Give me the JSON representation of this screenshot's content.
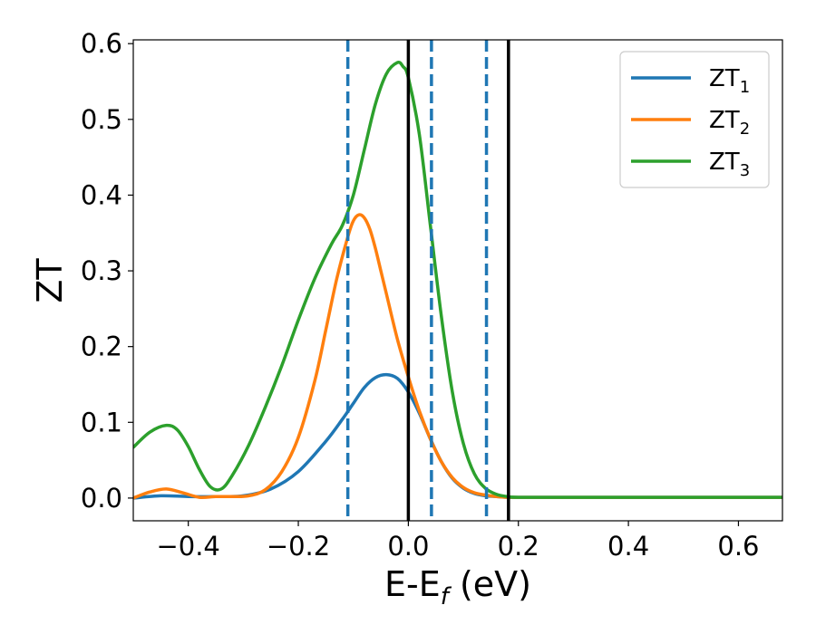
{
  "chart_data": {
    "type": "line",
    "title": "",
    "xlabel": "E-E",
    "xlabel_sub": "f",
    "xlabel_unit": " (eV)",
    "ylabel": "ZT",
    "xlim": [
      -0.5,
      0.68
    ],
    "ylim": [
      -0.03,
      0.605
    ],
    "xticks": [
      -0.4,
      -0.2,
      0.0,
      0.2,
      0.4,
      0.6
    ],
    "xtick_labels": [
      "−0.4",
      "−0.2",
      "0.0",
      "0.2",
      "0.4",
      "0.6"
    ],
    "yticks": [
      0.0,
      0.1,
      0.2,
      0.3,
      0.4,
      0.5,
      0.6
    ],
    "ytick_labels": [
      "0.0",
      "0.1",
      "0.2",
      "0.3",
      "0.4",
      "0.5",
      "0.6"
    ],
    "grid": false,
    "legend_position": "top-right",
    "series": [
      {
        "name": "ZT",
        "name_sub": "1",
        "color": "#1f77b4",
        "x": [
          -0.5,
          -0.45,
          -0.4,
          -0.35,
          -0.3,
          -0.25,
          -0.2,
          -0.15,
          -0.12,
          -0.1,
          -0.08,
          -0.06,
          -0.04,
          -0.02,
          0.0,
          0.02,
          0.04,
          0.06,
          0.08,
          0.1,
          0.12,
          0.14,
          0.16,
          0.18,
          0.2,
          0.3,
          0.4,
          0.5,
          0.6,
          0.68
        ],
        "y": [
          0.0,
          0.003,
          0.002,
          0.002,
          0.003,
          0.012,
          0.035,
          0.075,
          0.104,
          0.125,
          0.146,
          0.159,
          0.163,
          0.158,
          0.14,
          0.112,
          0.078,
          0.048,
          0.026,
          0.013,
          0.006,
          0.003,
          0.002,
          0.001,
          0.001,
          0.001,
          0.001,
          0.001,
          0.001,
          0.001
        ]
      },
      {
        "name": "ZT",
        "name_sub": "2",
        "color": "#ff7f0e",
        "x": [
          -0.5,
          -0.47,
          -0.44,
          -0.41,
          -0.38,
          -0.35,
          -0.32,
          -0.29,
          -0.26,
          -0.23,
          -0.2,
          -0.17,
          -0.15,
          -0.13,
          -0.11,
          -0.1,
          -0.09,
          -0.08,
          -0.07,
          -0.06,
          -0.05,
          -0.04,
          -0.02,
          0.0,
          0.02,
          0.04,
          0.06,
          0.08,
          0.1,
          0.12,
          0.14,
          0.16,
          0.18,
          0.2,
          0.3,
          0.4,
          0.5,
          0.6,
          0.68
        ],
        "y": [
          0.0,
          0.008,
          0.012,
          0.007,
          0.001,
          0.002,
          0.002,
          0.003,
          0.011,
          0.035,
          0.08,
          0.155,
          0.222,
          0.29,
          0.345,
          0.366,
          0.374,
          0.37,
          0.355,
          0.33,
          0.3,
          0.27,
          0.21,
          0.16,
          0.115,
          0.078,
          0.048,
          0.027,
          0.014,
          0.007,
          0.004,
          0.002,
          0.001,
          0.001,
          0.001,
          0.001,
          0.001,
          0.001,
          0.001
        ]
      },
      {
        "name": "ZT",
        "name_sub": "3",
        "color": "#2ca02c",
        "x": [
          -0.5,
          -0.47,
          -0.44,
          -0.42,
          -0.4,
          -0.38,
          -0.36,
          -0.34,
          -0.32,
          -0.29,
          -0.26,
          -0.23,
          -0.2,
          -0.17,
          -0.14,
          -0.12,
          -0.1,
          -0.08,
          -0.06,
          -0.04,
          -0.02,
          -0.01,
          0.0,
          0.02,
          0.04,
          0.06,
          0.08,
          0.1,
          0.12,
          0.14,
          0.16,
          0.18,
          0.2,
          0.3,
          0.4,
          0.5,
          0.6,
          0.68
        ],
        "y": [
          0.067,
          0.087,
          0.096,
          0.09,
          0.068,
          0.038,
          0.015,
          0.012,
          0.03,
          0.07,
          0.12,
          0.175,
          0.235,
          0.29,
          0.335,
          0.36,
          0.4,
          0.46,
          0.52,
          0.56,
          0.575,
          0.57,
          0.555,
          0.48,
          0.36,
          0.24,
          0.14,
          0.072,
          0.032,
          0.013,
          0.005,
          0.002,
          0.001,
          0.001,
          0.001,
          0.001,
          0.001,
          0.001
        ]
      }
    ],
    "vlines": [
      {
        "x": -0.11,
        "style": "dashed",
        "color": "#1f77b4"
      },
      {
        "x": 0.0,
        "style": "solid",
        "color": "#000000"
      },
      {
        "x": 0.042,
        "style": "dashed",
        "color": "#1f77b4"
      },
      {
        "x": 0.142,
        "style": "dashed",
        "color": "#1f77b4"
      },
      {
        "x": 0.182,
        "style": "solid",
        "color": "#000000"
      }
    ]
  }
}
